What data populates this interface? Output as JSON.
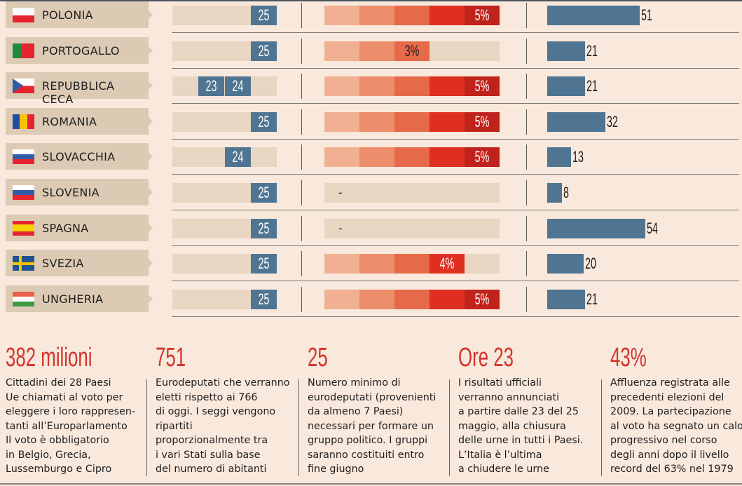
{
  "chart_data": {
    "type": "table",
    "age_slots": [
      22,
      23,
      24,
      25
    ],
    "pct_steps": 5,
    "colors": {
      "label_bg": "#dccab4",
      "track": "#e8d6c3",
      "blue": "#4f7592",
      "pct_segments": [
        "#f2b093",
        "#ec8e6b",
        "#e66a4a",
        "#de2f21",
        "#bf231b"
      ],
      "stat_title": "#d5332b"
    },
    "rows": [
      {
        "country": "POLONIA",
        "flag": [
          "#ffffff",
          "#e5242d"
        ],
        "flag_dir": "h",
        "ages": [
          25
        ],
        "pct": 5,
        "pct_label": "5%",
        "value": 51
      },
      {
        "country": "PORTOGALLO",
        "flag": [
          "#1e8a3a",
          "#e5242d"
        ],
        "flag_dir": "v2",
        "ages": [
          25
        ],
        "pct": 3,
        "pct_label": "3%",
        "value": 21
      },
      {
        "country": "REPUBBLICA CECA",
        "flag": [
          "#ffffff",
          "#e5242d",
          "#2f5da8"
        ],
        "flag_dir": "cz",
        "ages": [
          23,
          24
        ],
        "pct": 5,
        "pct_label": "5%",
        "value": 21
      },
      {
        "country": "ROMANIA",
        "flag": [
          "#1f4fa3",
          "#f8c300",
          "#e5242d"
        ],
        "flag_dir": "v",
        "ages": [
          25
        ],
        "pct": 5,
        "pct_label": "5%",
        "value": 32
      },
      {
        "country": "SLOVACCHIA",
        "flag": [
          "#ffffff",
          "#2f5da8",
          "#e5242d"
        ],
        "flag_dir": "h",
        "ages": [
          24
        ],
        "pct": 5,
        "pct_label": "5%",
        "value": 13
      },
      {
        "country": "SLOVENIA",
        "flag": [
          "#ffffff",
          "#2f5da8",
          "#e5242d"
        ],
        "flag_dir": "h",
        "ages": [
          25
        ],
        "pct": 0,
        "pct_label": "-",
        "value": 8
      },
      {
        "country": "SPAGNA",
        "flag": [
          "#e5242d",
          "#f8d100",
          "#f8d100",
          "#e5242d"
        ],
        "flag_dir": "h",
        "ages": [
          25
        ],
        "pct": 0,
        "pct_label": "-",
        "value": 54
      },
      {
        "country": "SVEZIA",
        "flag": [
          "#20528f",
          "#f8c300"
        ],
        "flag_dir": "se",
        "ages": [
          25
        ],
        "pct": 4,
        "pct_label": "4%",
        "value": 20
      },
      {
        "country": "UNGHERIA",
        "flag": [
          "#e8604a",
          "#ffffff",
          "#3a9a45"
        ],
        "flag_dir": "h",
        "ages": [
          25
        ],
        "pct": 5,
        "pct_label": "5%",
        "value": 21
      }
    ]
  },
  "stats": [
    {
      "title": "382 milioni",
      "body": "Cittadini dei 28 Paesi\nUe chiamati al voto per\neleggere i loro rappresen-\ntanti all’Europarlamento\nIl voto è obbligatorio\nin Belgio, Grecia,\nLussemburgo e Cipro"
    },
    {
      "title": "751",
      "body": "Eurodeputati che verranno\neletti rispetto ai 766\ndi oggi. I seggi vengono\nripartiti\nproporzionalmente tra\ni vari Stati sulla base\ndel numero di abitanti"
    },
    {
      "title": "25",
      "body": "Numero minimo di\neurodeputati (provenienti\nda almeno 7 Paesi)\nnecessari per formare un\ngruppo politico. I gruppi\nsaranno costituiti entro\nfine giugno"
    },
    {
      "title": "Ore 23",
      "body": "I risultati ufficiali\nverranno annunciati\na partire dalle 23 del 25\nmaggio, alla chiusura\ndelle urne in tutti i Paesi.\nL’Italia è l’ultima\na chiudere le urne"
    },
    {
      "title": "43%",
      "body": "Affluenza registrata alle\nprecedenti elezioni del\n2009. La partecipazione\nal voto ha segnato un calo\nprogressivo nel corso\ndegli anni dopo il livello\nrecord del 63% nel 1979"
    }
  ]
}
